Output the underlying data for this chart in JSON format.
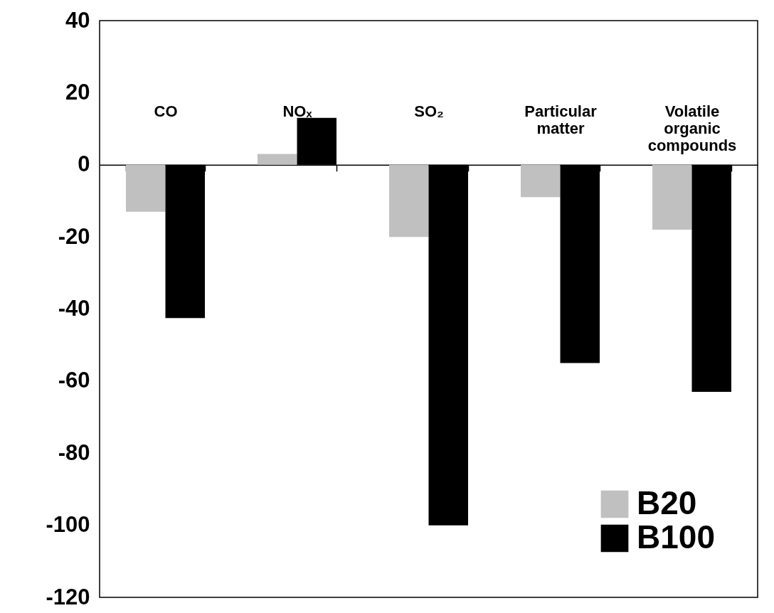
{
  "chart_data": {
    "type": "bar",
    "categories": [
      "CO",
      "NOₓ",
      "SO₂",
      "Particular matter",
      "Volatile organic compounds"
    ],
    "series": [
      {
        "name": "B20",
        "color": "#c0c0c0",
        "values": [
          -13,
          3,
          -20,
          -9,
          -18
        ]
      },
      {
        "name": "B100",
        "color": "#000000",
        "values": [
          -42.5,
          13,
          -100,
          -55,
          -63
        ]
      }
    ],
    "ylim": [
      -120,
      40
    ],
    "yticks": [
      -120,
      -100,
      -80,
      -60,
      -40,
      -20,
      0,
      20,
      40
    ],
    "grid": false,
    "legend": "bottom right"
  }
}
